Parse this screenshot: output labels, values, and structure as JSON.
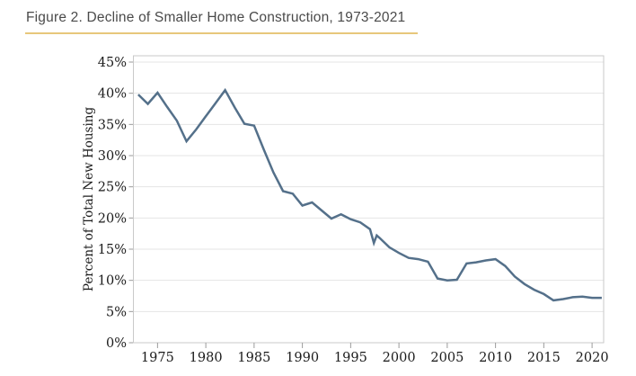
{
  "figure": {
    "title": "Figure 2. Decline of Smaller Home Construction, 1973-2021"
  },
  "colors": {
    "background": "#ffffff",
    "line": "#54708a",
    "title_text": "#4a4a4a",
    "title_underline": "#e7c77b",
    "grid": "#e4e4e4",
    "frame": "#c9c9c9",
    "axis_text": "#1b1b1b"
  },
  "chart_data": {
    "type": "line",
    "title": "Figure 2. Decline of Smaller Home Construction, 1973-2021",
    "xlabel": "",
    "ylabel": "Percent of Total New Housing",
    "xlim": [
      1972.5,
      2021.2
    ],
    "ylim": [
      0,
      45
    ],
    "grid": true,
    "legend": false,
    "x_tick_labels": [
      "1975",
      "1980",
      "1985",
      "1990",
      "1995",
      "2000",
      "2005",
      "2010",
      "2015",
      "2020"
    ],
    "y_tick_labels": [
      "0%",
      "5%",
      "10%",
      "15%",
      "20%",
      "25%",
      "30%",
      "35%",
      "40%",
      "45%"
    ],
    "series": [
      {
        "points": [
          [
            1973,
            39.8
          ],
          [
            1974,
            38.3
          ],
          [
            1975,
            40.1
          ],
          [
            1976,
            37.8
          ],
          [
            1977,
            35.6
          ],
          [
            1978,
            32.3
          ],
          [
            1979,
            34.2
          ],
          [
            1980,
            36.3
          ],
          [
            1981,
            38.4
          ],
          [
            1982,
            40.5
          ],
          [
            1983,
            37.7
          ],
          [
            1984,
            35.1
          ],
          [
            1985,
            34.8
          ],
          [
            1986,
            31.0
          ],
          [
            1987,
            27.3
          ],
          [
            1988,
            24.3
          ],
          [
            1989,
            23.9
          ],
          [
            1990,
            22.0
          ],
          [
            1991,
            22.5
          ],
          [
            1992,
            21.2
          ],
          [
            1993,
            19.9
          ],
          [
            1994,
            20.6
          ],
          [
            1995,
            19.8
          ],
          [
            1996,
            19.3
          ],
          [
            1997,
            18.2
          ],
          [
            1997.4,
            16.0
          ],
          [
            1997.7,
            17.2
          ],
          [
            1998,
            16.8
          ],
          [
            1999,
            15.3
          ],
          [
            2000,
            14.4
          ],
          [
            2001,
            13.6
          ],
          [
            2002,
            13.4
          ],
          [
            2003,
            13.0
          ],
          [
            2004,
            10.3
          ],
          [
            2005,
            10.0
          ],
          [
            2006,
            10.1
          ],
          [
            2007,
            12.7
          ],
          [
            2008,
            12.9
          ],
          [
            2009,
            13.2
          ],
          [
            2010,
            13.4
          ],
          [
            2011,
            12.3
          ],
          [
            2012,
            10.6
          ],
          [
            2013,
            9.4
          ],
          [
            2014,
            8.5
          ],
          [
            2015,
            7.8
          ],
          [
            2016,
            6.8
          ],
          [
            2017,
            7.0
          ],
          [
            2018,
            7.3
          ],
          [
            2019,
            7.4
          ],
          [
            2020,
            7.2
          ],
          [
            2021,
            7.2
          ]
        ]
      }
    ]
  }
}
